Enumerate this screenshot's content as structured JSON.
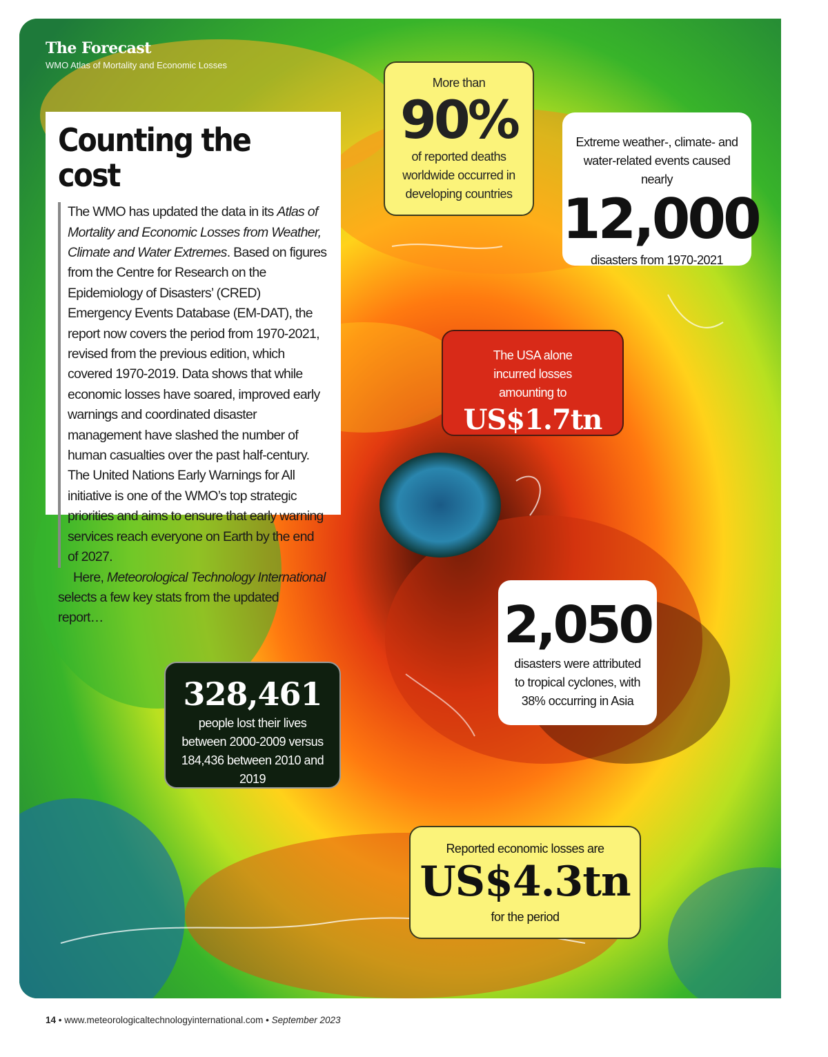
{
  "header": {
    "publication": "The Forecast",
    "subtitle": "WMO Atlas of Mortality and Economic Losses"
  },
  "intro": {
    "title": "Counting the cost",
    "p1_a": "The WMO has updated the data in its ",
    "p1_italic": "Atlas of Mortality and Economic Losses from Weather, Climate and Water Extremes",
    "p1_b": ". Based on figures from the Centre for Research on the Epidemiology of Disasters’ (CRED) Emergency Events Database (EM-DAT), the report now covers the period from 1970-2021, revised from the previous edition, which covered 1970-2019. Data shows that while economic losses have soared, improved early warnings and coordinated disaster management have slashed the number of human casualties over the past half-century. The United Nations Early Warnings for All initiative is one of the WMO’s top strategic priorities and aims to ensure that early warning services reach everyone on Earth by the end of 2027.",
    "p2_a": "Here, ",
    "p2_italic": "Meteorological Technology International",
    "p2_b": " selects a few key stats from the updated report…"
  },
  "stats": {
    "deaths": {
      "pre": "More than",
      "value": "90%",
      "post": "of reported deaths worldwide occurred in developing countries"
    },
    "disasters": {
      "pre": "Extreme weather-, climate- and water-related events caused nearly",
      "value": "12,000",
      "post": "disasters from 1970-2021"
    },
    "usa": {
      "pre": "The USA alone incurred losses amounting to",
      "value": "US$1.7tn"
    },
    "cyclones": {
      "value": "2,050",
      "post": "disasters were attributed to tropical cyclones, with 38% occurring in Asia"
    },
    "lives": {
      "value": "328,461",
      "post": "people lost their lives between 2000-2009 versus 184,436 between 2010 and 2019"
    },
    "losses": {
      "pre": "Reported economic losses are",
      "value": "US$4.3tn",
      "post": "for the period"
    }
  },
  "footer": {
    "page": "14",
    "sep": " • ",
    "url": "www.meteorologicaltechnologyinternational.com",
    "date": "September 2023"
  },
  "colors": {
    "yellow_box": "#fbf37a",
    "red_box": "#d82a18",
    "dark_box": "#0f1f0f",
    "eye": "#1e6e9a"
  }
}
